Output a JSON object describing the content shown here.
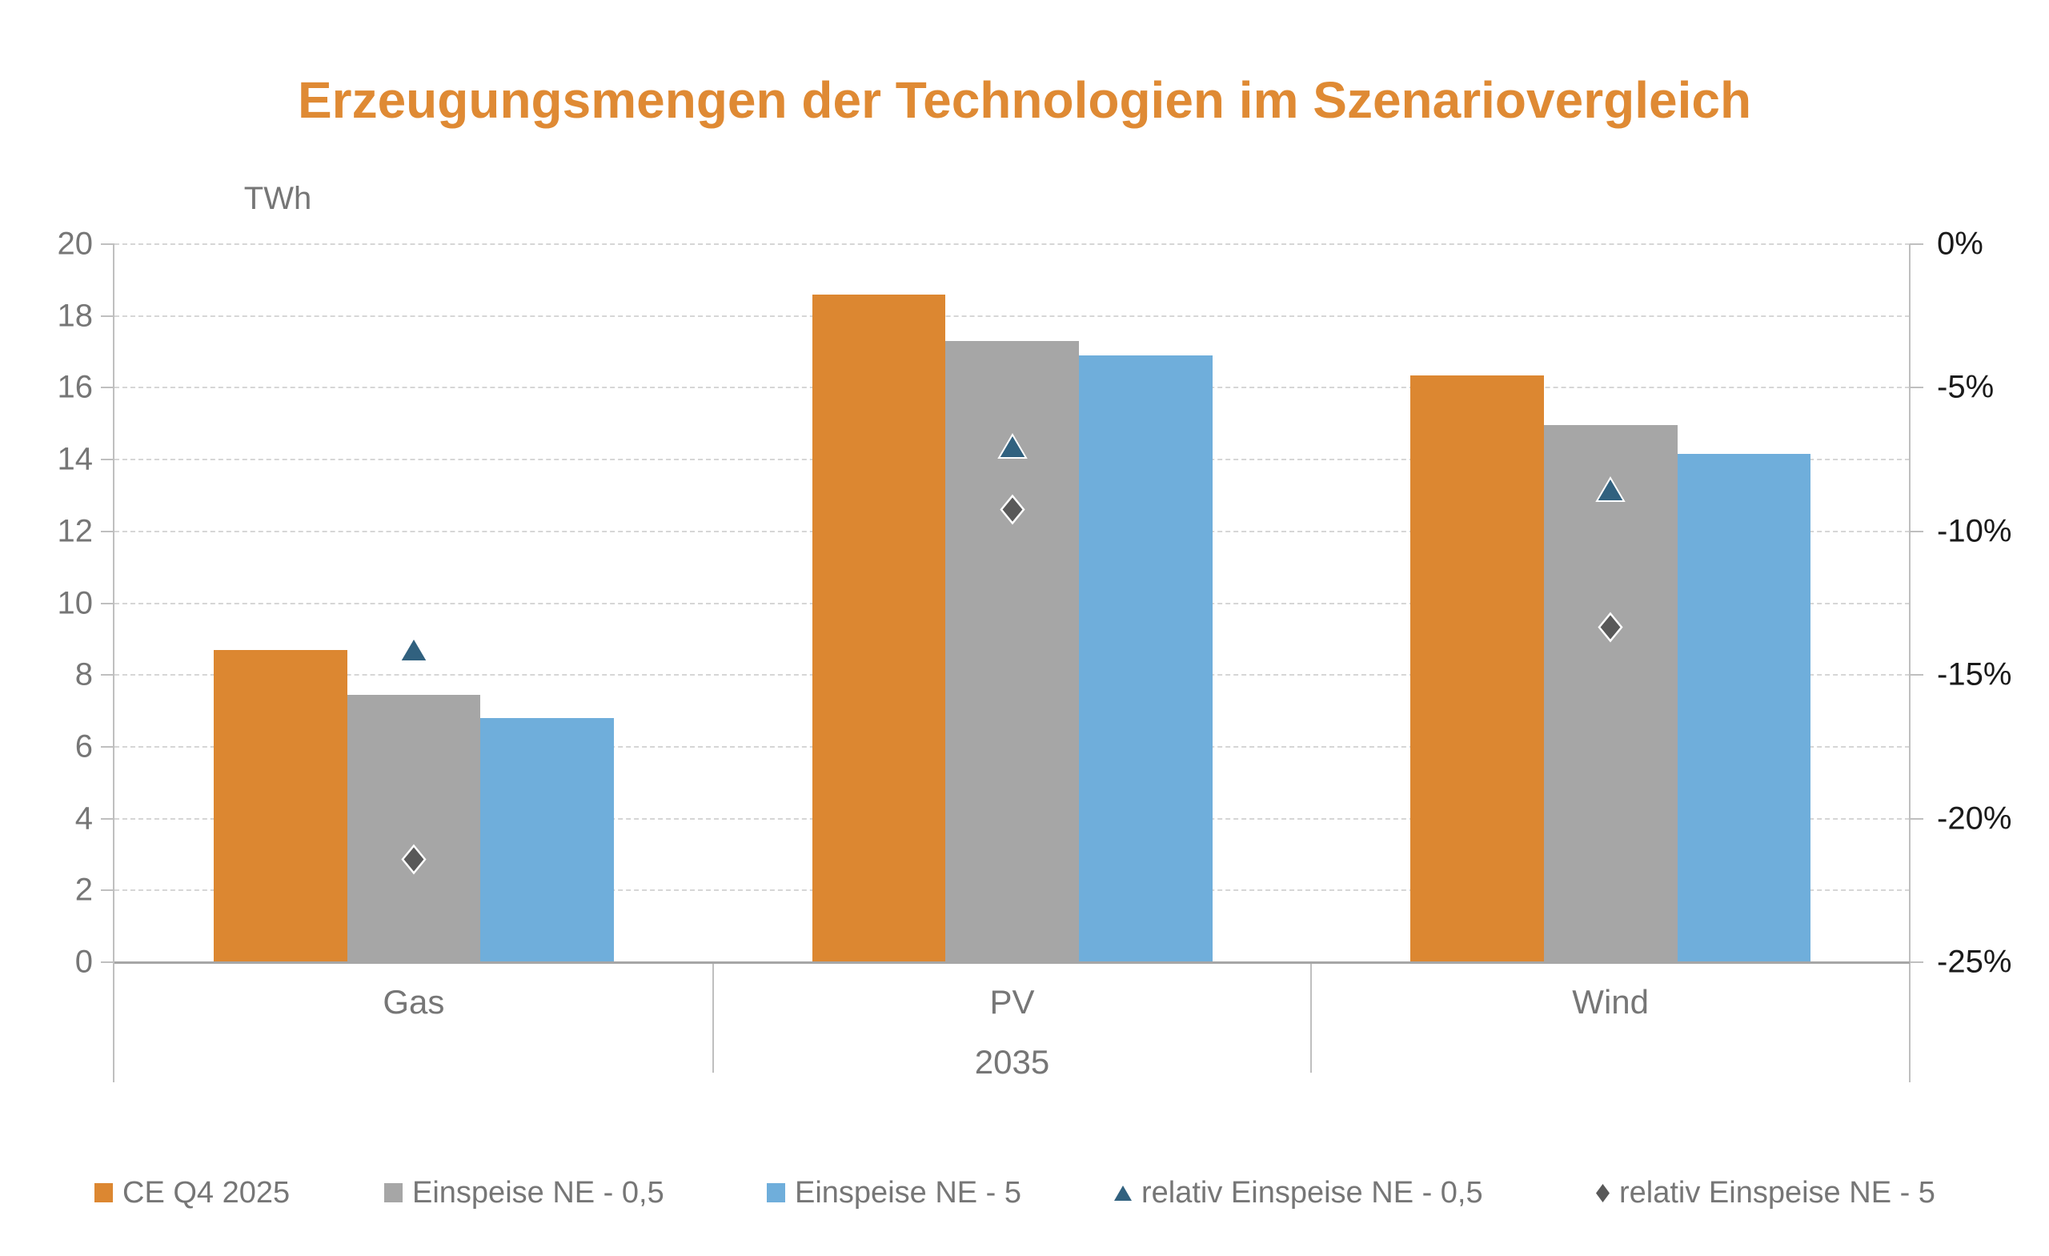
{
  "chart_data": {
    "type": "bar",
    "title": "Erzeugungsmengen der Technologien im Szenariovergleich",
    "title_color": "#DF8A34",
    "categories": [
      "Gas",
      "PV",
      "Wind"
    ],
    "x_second_level": "2035",
    "series": [
      {
        "name": "CE Q4 2025",
        "type": "bar",
        "axis": "left",
        "color": "#DC8731",
        "values": [
          8.7,
          18.6,
          16.35
        ]
      },
      {
        "name": "Einspeise NE - 0,5",
        "type": "bar",
        "axis": "left",
        "color": "#A6A6A6",
        "values": [
          7.45,
          17.3,
          14.95
        ]
      },
      {
        "name": "Einspeise NE - 5",
        "type": "bar",
        "axis": "left",
        "color": "#6FAEDB",
        "values": [
          6.8,
          16.9,
          14.15
        ]
      },
      {
        "name": "relativ Einspeise NE - 0,5",
        "type": "marker-triangle",
        "axis": "right",
        "color": "#31617F",
        "values": [
          -14.2,
          -7.1,
          -8.6
        ]
      },
      {
        "name": "relativ Einspeise NE - 5",
        "type": "marker-diamond",
        "axis": "right",
        "color": "#595959",
        "values": [
          -21.5,
          -9.3,
          -13.4
        ]
      }
    ],
    "left_axis": {
      "label": "TWh",
      "min": 0,
      "max": 20,
      "step": 2,
      "tick_labels": [
        "0",
        "2",
        "4",
        "6",
        "8",
        "10",
        "12",
        "14",
        "16",
        "18",
        "20"
      ]
    },
    "right_axis": {
      "min": -25,
      "max": 0,
      "step": 5,
      "tick_labels": [
        "0%",
        "-5%",
        "-10%",
        "-15%",
        "-20%",
        "-25%"
      ]
    },
    "grid": true,
    "legend_position": "bottom",
    "colors": {
      "gridline": "#D6D6D6",
      "axis_line": "#BFBFBF",
      "baseline": "#A6A6A6",
      "axis_text": "#767676",
      "right_axis_text": "#1A1A1A"
    }
  }
}
